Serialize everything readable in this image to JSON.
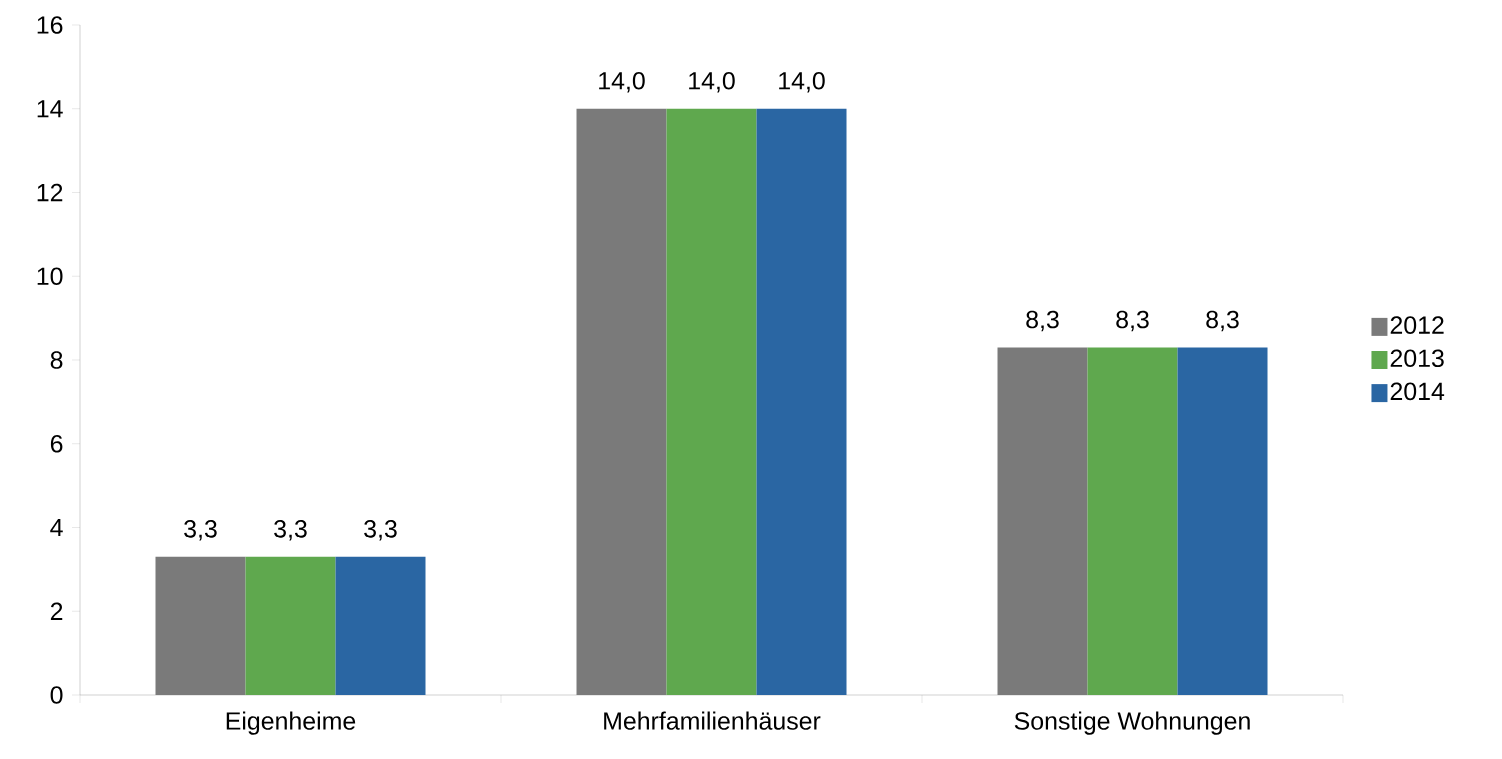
{
  "chart_data": {
    "type": "bar",
    "categories": [
      "Eigenheime",
      "Mehrfamilienhäuser",
      "Sonstige Wohnungen"
    ],
    "series": [
      {
        "name": "2012",
        "color": "#7a7a7a",
        "values": [
          3.3,
          14.0,
          8.3
        ],
        "value_labels": [
          "3,3",
          "14,0",
          "8,3"
        ]
      },
      {
        "name": "2013",
        "color": "#5fa84e",
        "values": [
          3.3,
          14.0,
          8.3
        ],
        "value_labels": [
          "3,3",
          "14,0",
          "8,3"
        ]
      },
      {
        "name": "2014",
        "color": "#2a66a3",
        "values": [
          3.3,
          14.0,
          8.3
        ],
        "value_labels": [
          "3,3",
          "14,0",
          "8,3"
        ]
      }
    ],
    "ylim": [
      0,
      16
    ],
    "yticks": [
      0,
      2,
      4,
      6,
      8,
      10,
      12,
      14,
      16
    ],
    "legend": "right"
  }
}
